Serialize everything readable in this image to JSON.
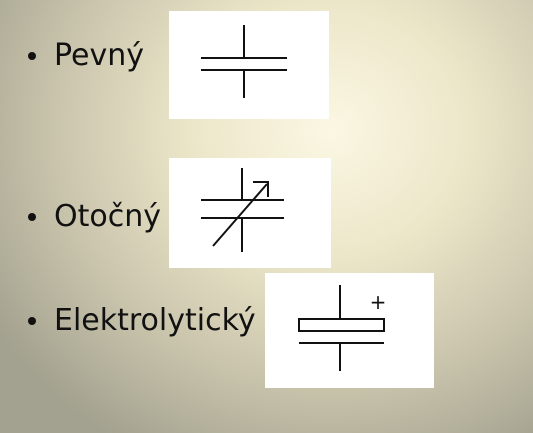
{
  "items": [
    {
      "label": "Pevný",
      "symbol": "fixed-capacitor-icon"
    },
    {
      "label": "Otočný",
      "symbol": "variable-capacitor-icon"
    },
    {
      "label": "Elektrolytický",
      "symbol": "electrolytic-capacitor-icon",
      "polarity_mark": "+"
    }
  ]
}
